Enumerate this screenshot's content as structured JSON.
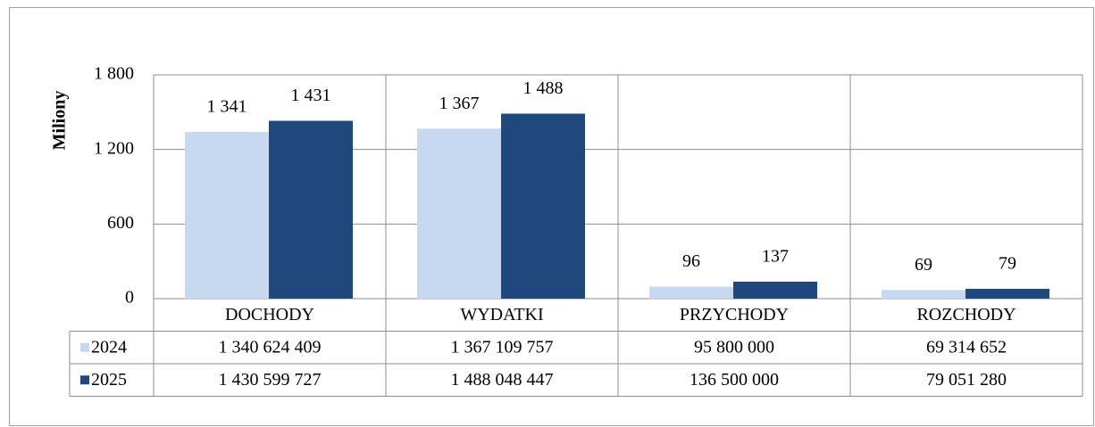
{
  "chart_data": {
    "type": "bar",
    "y_label": "Miliony",
    "categories": [
      "DOCHODY",
      "WYDATKI",
      "PRZYCHODY",
      "ROZCHODY"
    ],
    "series": [
      {
        "name": "2024",
        "color": "#c6d9f1",
        "values": [
          1340.624409,
          1367.109757,
          95.8,
          69.314652
        ],
        "value_labels": [
          "1 341",
          "1 367",
          "96",
          "69"
        ]
      },
      {
        "name": "2025",
        "color": "#1f497d",
        "values": [
          1430.599727,
          1488.048447,
          136.5,
          79.05128
        ],
        "value_labels": [
          "1 431",
          "1 488",
          "137",
          "79"
        ]
      }
    ],
    "ylim": [
      0,
      1800
    ],
    "yticks": [
      0,
      600,
      {
        "value": 1200,
        "label": "1 200"
      },
      {
        "value": 1800,
        "label": "1 800"
      }
    ],
    "grid": true
  },
  "table": {
    "rows": [
      [
        "1 340 624 409",
        "1 367 109 757",
        "95 800 000",
        "69 314 652"
      ],
      [
        "1 430 599 727",
        "1 488 048 447",
        "136 500 000",
        "79 051 280"
      ]
    ]
  }
}
